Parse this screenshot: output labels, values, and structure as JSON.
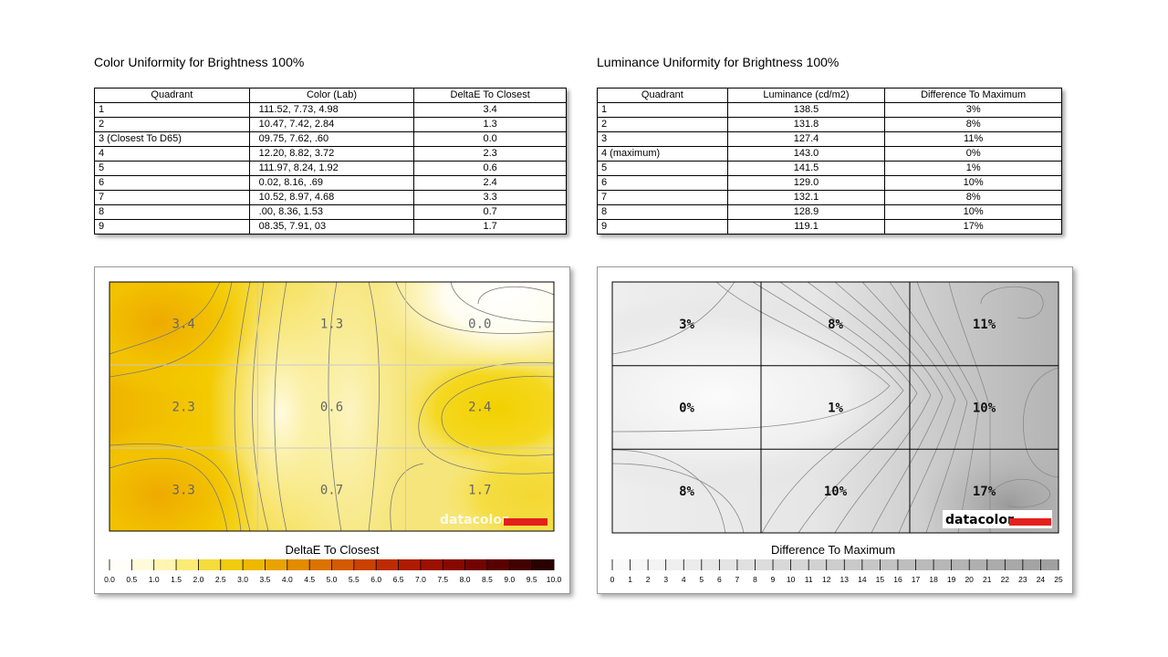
{
  "color_title": "Color Uniformity for Brightness 100%",
  "lum_title": "Luminance Uniformity for Brightness 100%",
  "color_table": {
    "headers": [
      "Quadrant",
      "Color (Lab)",
      "DeltaE To Closest"
    ],
    "rows": [
      [
        "1",
        "111.52,   7.73,   4.98",
        "3.4"
      ],
      [
        "2",
        "10.47,   7.42,   2.84",
        "1.3"
      ],
      [
        "3 (Closest To D65)",
        "09.75,   7.62,   .60",
        "0.0"
      ],
      [
        "4",
        "12.20,   8.82,   3.72",
        "2.3"
      ],
      [
        "5",
        "111.97,   8.24,   1.92",
        "0.6"
      ],
      [
        "6",
        "0.02,   8.16,   .69",
        "2.4"
      ],
      [
        "7",
        "10.52,   8.97,   4.68",
        "3.3"
      ],
      [
        "8",
        ".00,   8.36,   1.53",
        "0.7"
      ],
      [
        "9",
        "08.35,   7.91,   03",
        "1.7"
      ]
    ]
  },
  "lum_table": {
    "headers": [
      "Quadrant",
      "Luminance (cd/m2)",
      "Difference To Maximum"
    ],
    "rows": [
      [
        "1",
        "138.5",
        "3%"
      ],
      [
        "2",
        "131.8",
        "8%"
      ],
      [
        "3",
        "127.4",
        "11%"
      ],
      [
        "4 (maximum)",
        "143.0",
        "0%"
      ],
      [
        "5",
        "141.5",
        "1%"
      ],
      [
        "6",
        "129.0",
        "10%"
      ],
      [
        "7",
        "132.1",
        "8%"
      ],
      [
        "8",
        "128.9",
        "10%"
      ],
      [
        "9",
        "119.1",
        "17%"
      ]
    ]
  },
  "logo_text": "datacolor",
  "colors": {
    "logo_red": "#e3201b",
    "yellow": "#f0c800",
    "gray_dark": "#909090"
  },
  "chart_data": [
    {
      "type": "heatmap",
      "title": "DeltaE To Closest",
      "grid_rows": 3,
      "grid_cols": 3,
      "cell_labels": [
        [
          "3.4",
          "1.3",
          "0.0"
        ],
        [
          "2.3",
          "0.6",
          "2.4"
        ],
        [
          "3.3",
          "0.7",
          "1.7"
        ]
      ],
      "values": [
        [
          3.4,
          1.3,
          0.0
        ],
        [
          2.3,
          0.6,
          2.4
        ],
        [
          3.3,
          0.7,
          1.7
        ]
      ],
      "scale_min": 0,
      "scale_max": 10,
      "scale_ticks": [
        "0.0",
        "0.5",
        "1.0",
        "1.5",
        "2.0",
        "2.5",
        "3.0",
        "3.5",
        "4.0",
        "4.5",
        "5.0",
        "5.5",
        "6.0",
        "6.5",
        "7.0",
        "7.5",
        "8.0",
        "8.5",
        "9.0",
        "9.5",
        "10.0"
      ],
      "scale_colors": [
        "#fffef8",
        "#fffbd9",
        "#fff5b0",
        "#fbeb75",
        "#f5dc3c",
        "#f0cb10",
        "#ecb800",
        "#e8a300",
        "#e28c00",
        "#db7300",
        "#d35a00",
        "#c94200",
        "#bd2c00",
        "#ae1c00",
        "#9c1000",
        "#880800",
        "#720300",
        "#5a0000",
        "#420000",
        "#2a0000",
        "#111111"
      ]
    },
    {
      "type": "heatmap",
      "title": "Difference To Maximum",
      "grid_rows": 3,
      "grid_cols": 3,
      "cell_labels": [
        [
          "3%",
          "8%",
          "11%"
        ],
        [
          "0%",
          "1%",
          "10%"
        ],
        [
          "8%",
          "10%",
          "17%"
        ]
      ],
      "values": [
        [
          3,
          8,
          11
        ],
        [
          0,
          1,
          10
        ],
        [
          8,
          10,
          17
        ]
      ],
      "scale_min": 0,
      "scale_max": 25,
      "scale_ticks": [
        "0",
        "1",
        "2",
        "3",
        "4",
        "5",
        "6",
        "7",
        "8",
        "9",
        "10",
        "11",
        "12",
        "13",
        "14",
        "15",
        "16",
        "17",
        "18",
        "19",
        "20",
        "21",
        "22",
        "23",
        "24",
        "25"
      ]
    }
  ]
}
